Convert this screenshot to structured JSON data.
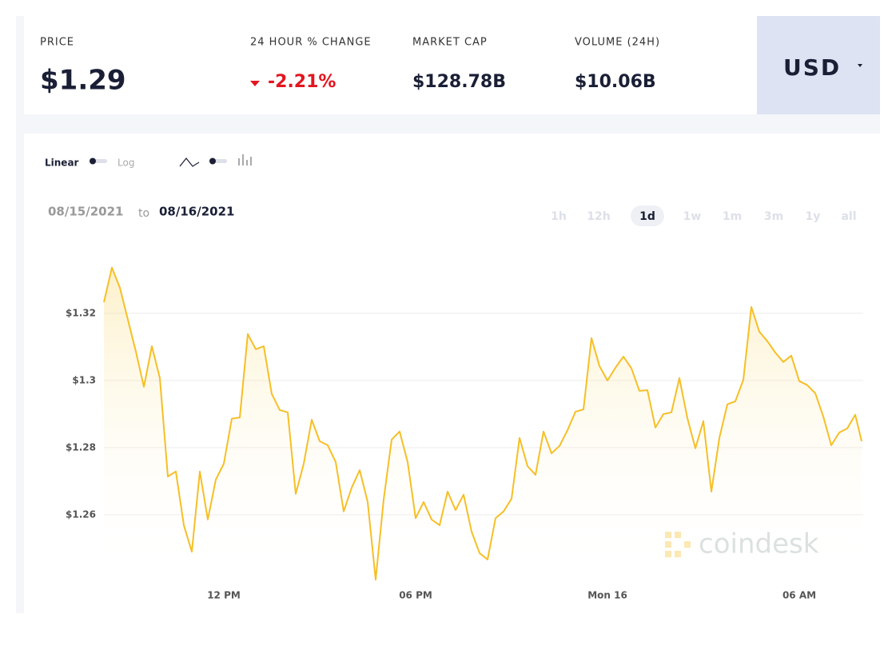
{
  "header": {
    "stats": [
      {
        "label": "PRICE",
        "value": "$1.29"
      },
      {
        "label": "24 HOUR % CHANGE",
        "value": "-2.21%"
      },
      {
        "label": "MARKET CAP",
        "value": "$128.78B"
      },
      {
        "label": "VOLUME (24H)",
        "value": "$10.06B"
      }
    ],
    "currency": "USD"
  },
  "controls": {
    "scale_options": [
      "Linear",
      "Log"
    ],
    "date_from": "08/15/2021",
    "date_to_word": "to",
    "date_to": "08/16/2021",
    "ranges": [
      "1h",
      "12h",
      "1d",
      "1w",
      "1m",
      "3m",
      "1y",
      "all"
    ],
    "active_range": "1d"
  },
  "watermark": "coindesk",
  "chart_data": {
    "type": "line",
    "color": "#f6bf26",
    "grid": true,
    "x": [
      8.25,
      8.5,
      8.75,
      9,
      9.25,
      9.5,
      9.75,
      10,
      10.25,
      10.5,
      10.75,
      11,
      11.25,
      11.5,
      11.75,
      12,
      12.25,
      12.5,
      12.75,
      13,
      13.25,
      13.5,
      13.75,
      14,
      14.25,
      14.5,
      14.75,
      15,
      15.25,
      15.5,
      15.75,
      16,
      16.25,
      16.5,
      16.75,
      17,
      17.25,
      17.5,
      17.75,
      18,
      18.25,
      18.5,
      18.75,
      19,
      19.25,
      19.5,
      19.75,
      20,
      20.25,
      20.5,
      20.75,
      21,
      21.25,
      21.5,
      21.75,
      22,
      22.25,
      22.5,
      22.75,
      23,
      23.25,
      23.5,
      23.75,
      24,
      24.25,
      24.5,
      24.75,
      25,
      25.25,
      25.5,
      25.75,
      26,
      26.25,
      26.5,
      26.75,
      27,
      27.25,
      27.5,
      27.75,
      28,
      28.25,
      28.5,
      28.75,
      29,
      29.25,
      29.5,
      29.75,
      30,
      30.25,
      30.5,
      30.75,
      31,
      31.25,
      31.5,
      31.75,
      31.95
    ],
    "values": [
      1.3233,
      1.3336,
      1.3276,
      1.3181,
      1.3086,
      1.2981,
      1.3102,
      1.3007,
      1.2714,
      1.2729,
      1.2569,
      1.249,
      1.2729,
      1.2586,
      1.2705,
      1.2752,
      1.2886,
      1.289,
      1.3138,
      1.3093,
      1.3102,
      1.296,
      1.2912,
      1.2905,
      1.2662,
      1.2752,
      1.2883,
      1.2819,
      1.2807,
      1.2757,
      1.261,
      1.2681,
      1.2733,
      1.2638,
      1.2407,
      1.2645,
      1.2824,
      1.2848,
      1.2757,
      1.259,
      1.2638,
      1.2586,
      1.2569,
      1.2669,
      1.2614,
      1.266,
      1.255,
      1.2486,
      1.2467,
      1.259,
      1.261,
      1.2648,
      1.2829,
      1.2745,
      1.2719,
      1.2848,
      1.2783,
      1.2805,
      1.2852,
      1.2907,
      1.2914,
      1.3126,
      1.3043,
      1.3,
      1.3038,
      1.3071,
      1.3036,
      1.2969,
      1.2971,
      1.286,
      1.29,
      1.2905,
      1.3007,
      1.2888,
      1.2798,
      1.2879,
      1.2669,
      1.2829,
      1.2929,
      1.2938,
      1.3002,
      1.3219,
      1.3145,
      1.3117,
      1.3083,
      1.3055,
      1.3074,
      1.2998,
      1.2986,
      1.2962,
      1.2893,
      1.2807,
      1.2845,
      1.2857,
      1.2898,
      1.2819
    ],
    "xlim": [
      8.25,
      31.95
    ],
    "xticks": [
      {
        "value": 12,
        "label": "12 PM"
      },
      {
        "value": 18,
        "label": "06 PM"
      },
      {
        "value": 24,
        "label": "Mon 16"
      },
      {
        "value": 30,
        "label": "06 AM"
      }
    ],
    "ylim": [
      1.2395,
      1.3371
    ],
    "yticks": [
      {
        "value": 1.26,
        "label": "$1.26"
      },
      {
        "value": 1.28,
        "label": "$1.28"
      },
      {
        "value": 1.3,
        "label": "$1.3"
      },
      {
        "value": 1.32,
        "label": "$1.32"
      }
    ]
  }
}
